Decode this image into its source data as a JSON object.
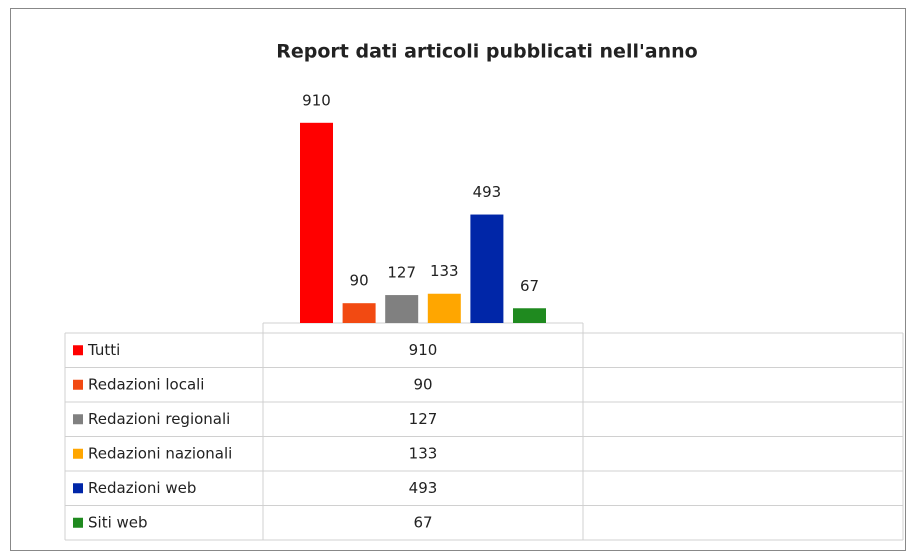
{
  "chart_data": {
    "type": "bar",
    "title": "Report dati articoli pubblicati nell'anno",
    "categories": [
      null,
      null
    ],
    "ylim": [
      0,
      1000
    ],
    "series": [
      {
        "name": "Tutti",
        "color": "#ff0000",
        "values": [
          910,
          null
        ]
      },
      {
        "name": "Redazioni locali",
        "color": "#f24a12",
        "values": [
          90,
          null
        ]
      },
      {
        "name": "Redazioni regionali",
        "color": "#808080",
        "values": [
          127,
          null
        ]
      },
      {
        "name": "Redazioni nazionali",
        "color": "#ffa600",
        "values": [
          133,
          null
        ]
      },
      {
        "name": "Redazioni web",
        "color": "#0026a8",
        "values": [
          493,
          null
        ]
      },
      {
        "name": "Siti web",
        "color": "#1f8a1f",
        "values": [
          67,
          null
        ]
      }
    ]
  }
}
